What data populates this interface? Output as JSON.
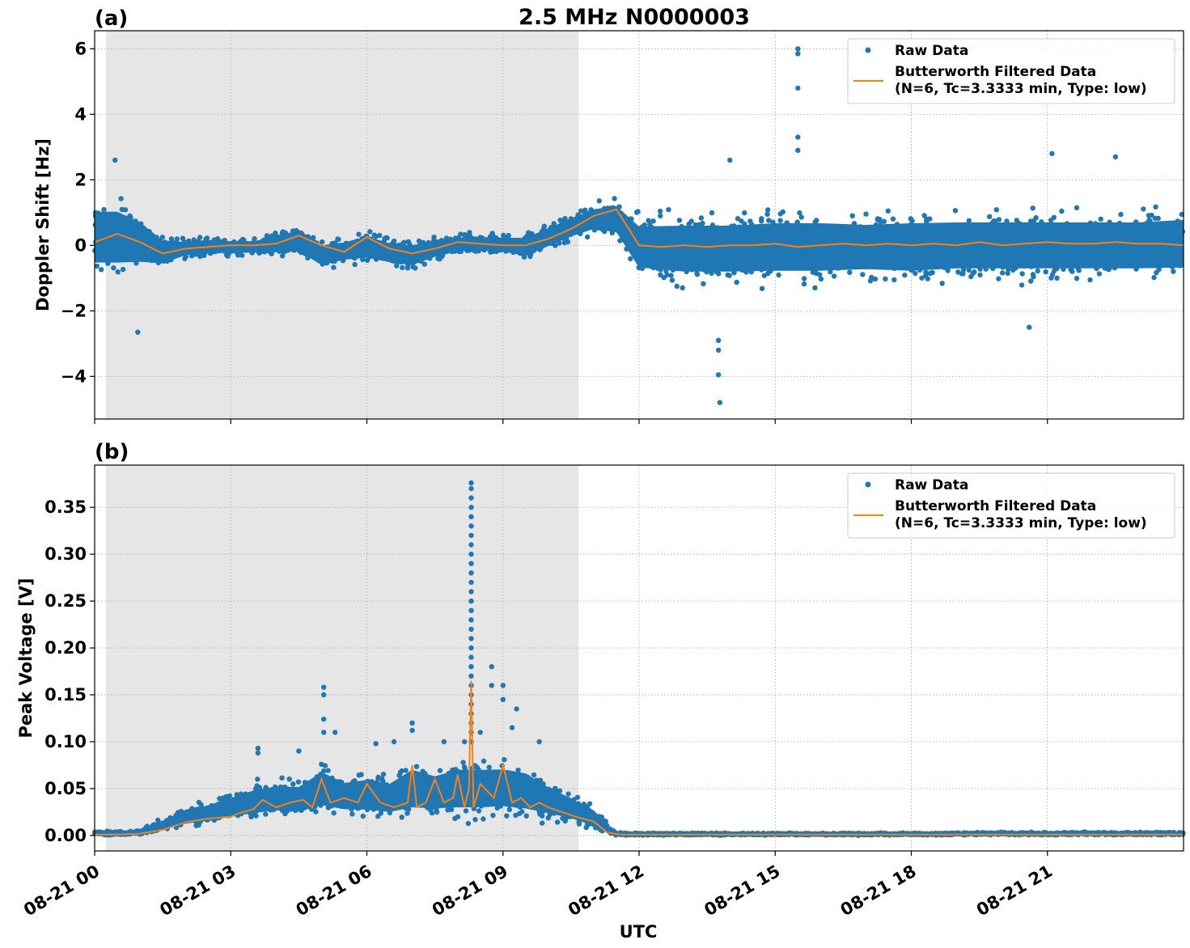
{
  "figure": {
    "title": "2.5 MHz N0000003",
    "xlabel": "UTC",
    "x_tick_labels": [
      "08-21 00",
      "08-21 03",
      "08-21 06",
      "08-21 09",
      "08-21 12",
      "08-21 15",
      "08-21 18",
      "08-21 21"
    ]
  },
  "colors": {
    "raw": "#1f77b4",
    "filtered": "#ff7f0e",
    "night_shade": "#e6e6e6",
    "grid": "#b0b0b0"
  },
  "chart_data": [
    {
      "panel": "(a)",
      "type": "scatter",
      "ylabel": "Doppler Shift [Hz]",
      "xlim_hours_utc": [
        0,
        24
      ],
      "ylim": [
        -5.3,
        6.55
      ],
      "y_ticks": [
        -4,
        -2,
        0,
        2,
        4,
        6
      ],
      "y_tick_labels": [
        "−4",
        "−2",
        "0",
        "2",
        "4",
        "6"
      ],
      "grid": true,
      "legend_position": "top-right",
      "legend": [
        "Raw Data",
        "Butterworth Filtered Data",
        "(N=6, Tc=3.3333 min, Type: low)"
      ],
      "shaded_span_hours_utc": [
        0.25,
        10.67
      ],
      "series": [
        {
          "name": "Raw Data",
          "kind": "scatter-envelope",
          "x_hours": [
            0.0,
            0.5,
            1.0,
            1.5,
            2.0,
            2.5,
            3.0,
            3.5,
            4.0,
            4.5,
            5.0,
            5.5,
            6.0,
            6.5,
            7.0,
            7.5,
            8.0,
            8.5,
            9.0,
            9.5,
            10.0,
            10.5,
            11.0,
            11.5,
            12.0,
            13.0,
            14.0,
            15.0,
            16.0,
            17.0,
            18.0,
            19.0,
            20.0,
            21.0,
            22.0,
            23.0,
            24.0
          ],
          "upper": [
            1.8,
            1.8,
            1.3,
            0.5,
            0.3,
            0.35,
            0.3,
            0.3,
            0.5,
            0.8,
            0.3,
            0.35,
            0.6,
            0.35,
            0.3,
            0.4,
            0.45,
            0.45,
            0.45,
            0.5,
            0.8,
            1.1,
            1.4,
            1.6,
            1.2,
            1.3,
            1.3,
            1.4,
            1.4,
            1.3,
            1.4,
            1.4,
            1.4,
            1.4,
            1.4,
            1.4,
            1.5
          ],
          "lower": [
            -1.3,
            -1.3,
            -1.1,
            -0.9,
            -0.5,
            -0.4,
            -0.4,
            -0.4,
            -0.45,
            -0.5,
            -0.9,
            -0.7,
            -0.7,
            -0.8,
            -0.9,
            -0.6,
            -0.4,
            -0.35,
            -0.4,
            -0.6,
            -0.3,
            0.0,
            0.2,
            0.0,
            -1.3,
            -1.5,
            -1.5,
            -1.5,
            -1.5,
            -1.4,
            -1.5,
            -1.4,
            -1.4,
            -1.4,
            -1.4,
            -1.4,
            -1.4
          ],
          "outliers": [
            [
              15.5,
              6.0
            ],
            [
              15.5,
              5.85
            ],
            [
              15.5,
              4.8
            ],
            [
              15.5,
              3.3
            ],
            [
              15.5,
              2.9
            ],
            [
              13.75,
              -2.9
            ],
            [
              13.75,
              -3.2
            ],
            [
              13.75,
              -3.95
            ],
            [
              13.78,
              -4.8
            ],
            [
              0.95,
              -2.65
            ],
            [
              0.45,
              2.6
            ],
            [
              21.1,
              2.8
            ],
            [
              22.5,
              2.7
            ],
            [
              14.0,
              2.6
            ],
            [
              20.6,
              -2.5
            ]
          ]
        },
        {
          "name": "Butterworth Filtered Data",
          "kind": "line",
          "x_hours": [
            0.0,
            0.5,
            1.0,
            1.5,
            2.0,
            2.5,
            3.0,
            3.5,
            4.0,
            4.5,
            5.0,
            5.5,
            6.0,
            6.5,
            7.0,
            7.5,
            8.0,
            8.5,
            9.0,
            9.5,
            10.0,
            10.5,
            11.0,
            11.5,
            12.0,
            12.5,
            13.0,
            13.5,
            14.0,
            14.5,
            15.0,
            15.5,
            16.0,
            16.5,
            17.0,
            17.5,
            18.0,
            18.5,
            19.0,
            19.5,
            20.0,
            20.5,
            21.0,
            21.5,
            22.0,
            22.5,
            23.0,
            23.5,
            24.0
          ],
          "y": [
            0.1,
            0.35,
            0.1,
            -0.25,
            -0.1,
            -0.05,
            0.0,
            0.0,
            0.05,
            0.3,
            0.0,
            -0.2,
            0.25,
            -0.1,
            -0.25,
            -0.1,
            0.1,
            0.05,
            0.0,
            0.0,
            0.2,
            0.5,
            0.9,
            1.1,
            0.0,
            -0.05,
            0.0,
            -0.05,
            0.0,
            0.0,
            0.05,
            -0.05,
            0.0,
            0.05,
            0.0,
            0.05,
            0.0,
            0.05,
            0.0,
            0.1,
            0.0,
            0.05,
            0.1,
            0.05,
            0.05,
            0.1,
            0.05,
            0.05,
            0.0
          ]
        }
      ]
    },
    {
      "panel": "(b)",
      "type": "scatter",
      "ylabel": "Peak Voltage [V]",
      "xlim_hours_utc": [
        0,
        24
      ],
      "ylim": [
        -0.0165,
        0.395
      ],
      "y_ticks": [
        0.0,
        0.05,
        0.1,
        0.15,
        0.2,
        0.25,
        0.3,
        0.35
      ],
      "y_tick_labels": [
        "0.00",
        "0.05",
        "0.10",
        "0.15",
        "0.20",
        "0.25",
        "0.30",
        "0.35"
      ],
      "grid": true,
      "legend_position": "top-right",
      "legend": [
        "Raw Data",
        "Butterworth Filtered Data",
        "(N=6, Tc=3.3333 min, Type: low)"
      ],
      "shaded_span_hours_utc": [
        0.25,
        10.67
      ],
      "series": [
        {
          "name": "Raw Data",
          "kind": "scatter-envelope",
          "x_hours": [
            0.0,
            0.5,
            1.0,
            1.5,
            2.0,
            2.5,
            3.0,
            3.5,
            4.0,
            4.5,
            5.0,
            5.5,
            6.0,
            6.5,
            7.0,
            7.5,
            8.0,
            8.5,
            9.0,
            9.5,
            10.0,
            10.5,
            11.0,
            11.5,
            12.0,
            14.0,
            16.0,
            18.0,
            20.0,
            22.0,
            24.0
          ],
          "upper": [
            0.005,
            0.005,
            0.006,
            0.02,
            0.035,
            0.04,
            0.05,
            0.06,
            0.065,
            0.065,
            0.085,
            0.07,
            0.075,
            0.07,
            0.09,
            0.08,
            0.09,
            0.09,
            0.09,
            0.085,
            0.065,
            0.05,
            0.035,
            0.003,
            0.003,
            0.003,
            0.003,
            0.003,
            0.004,
            0.004,
            0.004
          ],
          "lower": [
            0.0,
            0.0,
            0.0,
            0.002,
            0.005,
            0.008,
            0.01,
            0.012,
            0.014,
            0.012,
            0.015,
            0.014,
            0.012,
            0.01,
            0.01,
            0.012,
            0.01,
            0.01,
            0.012,
            0.01,
            0.01,
            0.008,
            0.002,
            0.0,
            0.0,
            0.0,
            0.0,
            0.0,
            0.0,
            0.0,
            0.0
          ],
          "outliers": [
            [
              5.05,
              0.158
            ],
            [
              5.05,
              0.15
            ],
            [
              5.05,
              0.124
            ],
            [
              5.05,
              0.11
            ],
            [
              7.0,
              0.12
            ],
            [
              7.0,
              0.112
            ],
            [
              8.75,
              0.18
            ],
            [
              8.75,
              0.16
            ],
            [
              9.0,
              0.16
            ],
            [
              9.0,
              0.145
            ],
            [
              9.3,
              0.135
            ],
            [
              9.8,
              0.1
            ],
            [
              8.3,
              0.376
            ],
            [
              8.3,
              0.37
            ],
            [
              8.3,
              0.36
            ],
            [
              8.3,
              0.35
            ],
            [
              8.3,
              0.34
            ],
            [
              8.3,
              0.33
            ],
            [
              8.3,
              0.32
            ],
            [
              8.3,
              0.31
            ],
            [
              8.3,
              0.3
            ],
            [
              8.3,
              0.29
            ],
            [
              8.3,
              0.28
            ],
            [
              8.3,
              0.27
            ],
            [
              8.3,
              0.26
            ],
            [
              8.3,
              0.25
            ],
            [
              8.3,
              0.24
            ],
            [
              8.3,
              0.23
            ],
            [
              8.3,
              0.22
            ],
            [
              8.3,
              0.21
            ],
            [
              8.3,
              0.2
            ],
            [
              8.3,
              0.19
            ],
            [
              8.3,
              0.18
            ],
            [
              8.3,
              0.17
            ],
            [
              8.3,
              0.16
            ],
            [
              8.3,
              0.15
            ],
            [
              8.3,
              0.14
            ],
            [
              8.3,
              0.13
            ],
            [
              8.3,
              0.12
            ],
            [
              8.3,
              0.11
            ],
            [
              8.3,
              0.1
            ],
            [
              3.6,
              0.093
            ],
            [
              3.6,
              0.088
            ],
            [
              4.5,
              0.09
            ],
            [
              5.3,
              0.11
            ],
            [
              6.2,
              0.098
            ],
            [
              6.6,
              0.1
            ],
            [
              7.7,
              0.1
            ],
            [
              8.15,
              0.1
            ],
            [
              8.5,
              0.11
            ],
            [
              9.2,
              0.115
            ]
          ]
        },
        {
          "name": "Butterworth Filtered Data",
          "kind": "line",
          "x_hours": [
            0.0,
            0.5,
            1.0,
            1.5,
            2.0,
            2.5,
            3.0,
            3.2,
            3.5,
            3.7,
            4.0,
            4.3,
            4.6,
            4.8,
            5.0,
            5.2,
            5.5,
            5.8,
            6.0,
            6.3,
            6.6,
            6.9,
            7.0,
            7.1,
            7.3,
            7.5,
            7.7,
            7.9,
            8.0,
            8.15,
            8.25,
            8.3,
            8.35,
            8.5,
            8.8,
            9.0,
            9.2,
            9.4,
            9.6,
            9.8,
            10.0,
            10.3,
            10.6,
            11.0,
            11.3,
            11.6,
            12.0,
            15.0,
            18.0,
            21.0,
            24.0
          ],
          "y": [
            0.001,
            0.001,
            0.002,
            0.006,
            0.014,
            0.018,
            0.02,
            0.024,
            0.028,
            0.038,
            0.03,
            0.035,
            0.038,
            0.03,
            0.06,
            0.035,
            0.04,
            0.035,
            0.055,
            0.035,
            0.03,
            0.035,
            0.075,
            0.03,
            0.035,
            0.06,
            0.035,
            0.04,
            0.065,
            0.03,
            0.05,
            0.165,
            0.03,
            0.055,
            0.04,
            0.075,
            0.035,
            0.04,
            0.03,
            0.035,
            0.03,
            0.025,
            0.02,
            0.015,
            0.003,
            0.001,
            0.001,
            0.001,
            0.001,
            0.001,
            0.001
          ]
        }
      ]
    }
  ]
}
